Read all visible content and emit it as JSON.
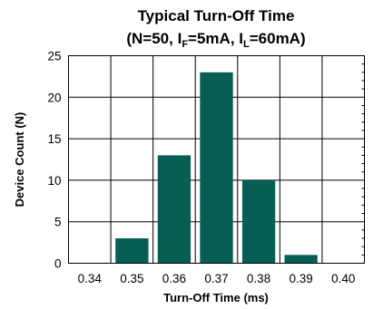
{
  "chart_data": {
    "type": "bar",
    "title_line1": "Typical Turn-Off Time",
    "title_line2": {
      "part1": "(N=50, I",
      "sub1": "F",
      "part2": "=5mA, I",
      "sub2": "L",
      "part3": "=60mA)"
    },
    "xlabel": "Turn-Off Time (ms)",
    "ylabel": "Device Count (N)",
    "categories": [
      "0.34",
      "0.35",
      "0.36",
      "0.37",
      "0.38",
      "0.39",
      "0.40"
    ],
    "values": [
      0,
      3,
      13,
      23,
      10,
      1,
      0
    ],
    "ylim": [
      0,
      25
    ],
    "yticks": [
      "0",
      "5",
      "10",
      "15",
      "20",
      "25"
    ],
    "grid": true,
    "bar_color": "#075e54"
  }
}
